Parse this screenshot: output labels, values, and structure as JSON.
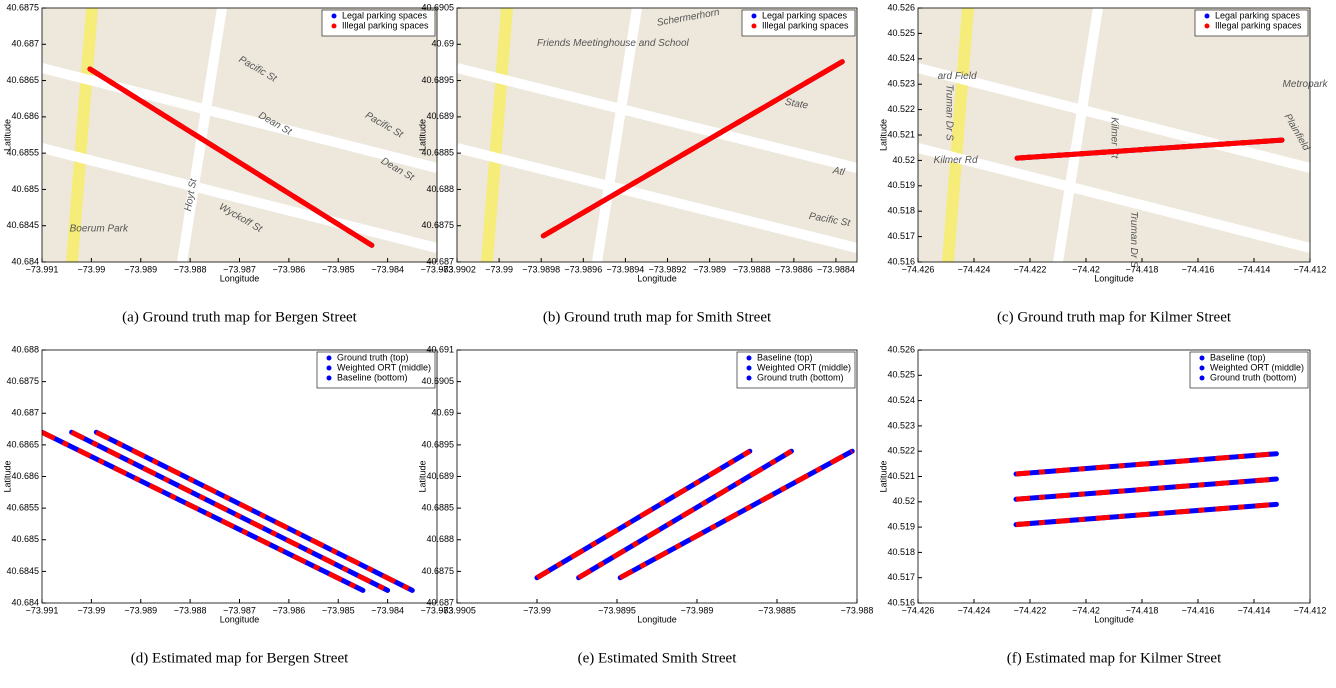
{
  "chart_data": [
    {
      "type": "line",
      "caption": "(a) Ground truth map for Bergen Street",
      "xlabel": "Longitude",
      "ylabel": "Latitude",
      "map_labels": [
        "Pacific St",
        "Dean St",
        "Pacific St",
        "Dean St",
        "Wyckoff St",
        "Hoyt St",
        "Boerum Park"
      ],
      "overlay_color": "#ff0000",
      "series": [
        {
          "name": "Legal parking spaces",
          "color": "#0000ff",
          "x": [
            -73.99003,
            -73.98432
          ],
          "values": [
            40.68666,
            40.68423
          ]
        },
        {
          "name": "Illegal parking spaces",
          "color": "#ff0000",
          "x": [
            -73.99003,
            -73.98432
          ],
          "values": [
            40.68666,
            40.68423
          ]
        }
      ],
      "xlim": [
        -73.991,
        -73.983
      ],
      "ylim": [
        40.684,
        40.6875
      ],
      "xticks": [
        {
          "value": -73.991,
          "label": "−73.991"
        },
        {
          "value": -73.99,
          "label": "−73.99"
        },
        {
          "value": -73.989,
          "label": "−73.989"
        },
        {
          "value": -73.988,
          "label": "−73.988"
        },
        {
          "value": -73.987,
          "label": "−73.987"
        },
        {
          "value": -73.986,
          "label": "−73.986"
        },
        {
          "value": -73.985,
          "label": "−73.985"
        },
        {
          "value": -73.984,
          "label": "−73.984"
        },
        {
          "value": -73.983,
          "label": "−73.983"
        }
      ],
      "yticks": [
        40.684,
        40.6845,
        40.685,
        40.6855,
        40.686,
        40.6865,
        40.687,
        40.6875
      ]
    },
    {
      "type": "line",
      "caption": "(b) Ground truth map for Smith Street",
      "xlabel": "Longitude",
      "ylabel": "Latitude",
      "map_labels": [
        "Schermerhorn",
        "Friends Meetinghouse and School",
        "State",
        "Pacific St",
        "Atl"
      ],
      "overlay_color": "#ff0000",
      "series": [
        {
          "name": "Legal parking spaces",
          "color": "#0000ff",
          "x": [
            -73.98979,
            -73.98837
          ],
          "values": [
            40.68736,
            40.68976
          ]
        },
        {
          "name": "Illegal parking spaces",
          "color": "#ff0000",
          "x": [
            -73.98979,
            -73.98837
          ],
          "values": [
            40.68736,
            40.68976
          ]
        }
      ],
      "xlim": [
        -73.9902,
        -73.9883
      ],
      "ylim": [
        40.687,
        40.6905
      ],
      "xticks": [
        {
          "value": -73.9902,
          "label": "−73.9902"
        },
        {
          "value": -73.99,
          "label": "−73.99"
        },
        {
          "value": -73.9898,
          "label": "−73.9898"
        },
        {
          "value": -73.9896,
          "label": "−73.9896"
        },
        {
          "value": -73.9894,
          "label": "−73.9894"
        },
        {
          "value": -73.9892,
          "label": "−73.9892"
        },
        {
          "value": -73.989,
          "label": "−73.989"
        },
        {
          "value": -73.9888,
          "label": "−73.9888"
        },
        {
          "value": -73.9886,
          "label": "−73.9886"
        },
        {
          "value": -73.9884,
          "label": "−73.9884"
        }
      ],
      "yticks": [
        40.687,
        40.6875,
        40.688,
        40.6885,
        40.689,
        40.6895,
        40.69,
        40.6905
      ]
    },
    {
      "type": "line",
      "caption": "(c) Ground truth map for Kilmer Street",
      "xlabel": "Longitude",
      "ylabel": "Latitude",
      "map_labels": [
        "Truman Dr S",
        "Kilmer Rd",
        "Kilmer Ct",
        "Plainfield",
        "Truman Dr S",
        "ard Field",
        "Metropark"
      ],
      "overlay_color": "#ff0000",
      "series": [
        {
          "name": "Legal parking spaces",
          "color": "#0000ff",
          "x": [
            -74.42246,
            -74.413
          ],
          "values": [
            40.52009,
            40.5208
          ]
        },
        {
          "name": "Illegal parking spaces",
          "color": "#ff0000",
          "x": [
            -74.42246,
            -74.413
          ],
          "values": [
            40.52009,
            40.5208
          ]
        }
      ],
      "xlim": [
        -74.426,
        -74.412
      ],
      "ylim": [
        40.516,
        40.526
      ],
      "xticks": [
        {
          "value": -74.426,
          "label": "−74.426"
        },
        {
          "value": -74.424,
          "label": "−74.424"
        },
        {
          "value": -74.422,
          "label": "−74.422"
        },
        {
          "value": -74.42,
          "label": "−74.42"
        },
        {
          "value": -74.418,
          "label": "−74.418"
        },
        {
          "value": -74.416,
          "label": "−74.416"
        },
        {
          "value": -74.414,
          "label": "−74.414"
        },
        {
          "value": -74.412,
          "label": "−74.412"
        }
      ],
      "yticks": [
        40.516,
        40.517,
        40.518,
        40.519,
        40.52,
        40.521,
        40.522,
        40.523,
        40.524,
        40.525,
        40.526
      ]
    },
    {
      "type": "line",
      "caption": "(d) Estimated map for Bergen Street",
      "xlabel": "Longitude",
      "ylabel": "Latitude",
      "overlay_color": "#ff0000",
      "series": [
        {
          "name": "Ground truth (top)",
          "color": "#0000ff",
          "x": [
            -73.9899,
            -73.9835
          ],
          "values": [
            40.6867,
            40.6842
          ]
        },
        {
          "name": "Weighted ORT (middle)",
          "color": "#0000ff",
          "x": [
            -73.9904,
            -73.984
          ],
          "values": [
            40.6867,
            40.6842
          ]
        },
        {
          "name": "Baseline (bottom)",
          "color": "#0000ff",
          "x": [
            -73.991,
            -73.9845
          ],
          "values": [
            40.6867,
            40.6842
          ]
        }
      ],
      "xlim": [
        -73.991,
        -73.983
      ],
      "ylim": [
        40.684,
        40.688
      ],
      "xticks": [
        {
          "value": -73.991,
          "label": "−73.991"
        },
        {
          "value": -73.99,
          "label": "−73.99"
        },
        {
          "value": -73.989,
          "label": "−73.989"
        },
        {
          "value": -73.988,
          "label": "−73.988"
        },
        {
          "value": -73.987,
          "label": "−73.987"
        },
        {
          "value": -73.986,
          "label": "−73.986"
        },
        {
          "value": -73.985,
          "label": "−73.985"
        },
        {
          "value": -73.984,
          "label": "−73.984"
        },
        {
          "value": -73.983,
          "label": "−73.983"
        }
      ],
      "yticks": [
        40.684,
        40.6845,
        40.685,
        40.6855,
        40.686,
        40.6865,
        40.687,
        40.6875,
        40.688
      ]
    },
    {
      "type": "line",
      "caption": "(e) Estimated Smith Street",
      "xlabel": "Longitude",
      "ylabel": "Latitude",
      "overlay_color": "#ff0000",
      "series": [
        {
          "name": "Baseline (top)",
          "color": "#0000ff",
          "x": [
            -73.99,
            -73.98867
          ],
          "values": [
            40.6874,
            40.6894
          ]
        },
        {
          "name": "Weighted ORT (middle)",
          "color": "#0000ff",
          "x": [
            -73.98974,
            -73.98841
          ],
          "values": [
            40.6874,
            40.6894
          ]
        },
        {
          "name": "Ground truth (bottom)",
          "color": "#0000ff",
          "x": [
            -73.98948,
            -73.98803
          ],
          "values": [
            40.6874,
            40.6894
          ]
        }
      ],
      "xlim": [
        -73.9905,
        -73.988
      ],
      "ylim": [
        40.687,
        40.691
      ],
      "xticks": [
        {
          "value": -73.9905,
          "label": "−73.9905"
        },
        {
          "value": -73.99,
          "label": "−73.99"
        },
        {
          "value": -73.9895,
          "label": "−73.9895"
        },
        {
          "value": -73.989,
          "label": "−73.989"
        },
        {
          "value": -73.9885,
          "label": "−73.9885"
        },
        {
          "value": -73.988,
          "label": "−73.988"
        }
      ],
      "yticks": [
        40.687,
        40.6875,
        40.688,
        40.6885,
        40.689,
        40.6895,
        40.69,
        40.6905,
        40.691
      ]
    },
    {
      "type": "line",
      "caption": "(f) Estimated map for Kilmer Street",
      "xlabel": "Longitude",
      "ylabel": "Latitude",
      "overlay_color": "#ff0000",
      "series": [
        {
          "name": "Baseline (top)",
          "color": "#0000ff",
          "x": [
            -74.4225,
            -74.4132
          ],
          "values": [
            40.5211,
            40.5219
          ]
        },
        {
          "name": "Weighted ORT (middle)",
          "color": "#0000ff",
          "x": [
            -74.4225,
            -74.4132
          ],
          "values": [
            40.5201,
            40.5209
          ]
        },
        {
          "name": "Ground truth (bottom)",
          "color": "#0000ff",
          "x": [
            -74.4225,
            -74.4132
          ],
          "values": [
            40.5191,
            40.5199
          ]
        }
      ],
      "xlim": [
        -74.426,
        -74.412
      ],
      "ylim": [
        40.516,
        40.526
      ],
      "xticks": [
        {
          "value": -74.426,
          "label": "−74.426"
        },
        {
          "value": -74.424,
          "label": "−74.424"
        },
        {
          "value": -74.422,
          "label": "−74.422"
        },
        {
          "value": -74.42,
          "label": "−74.42"
        },
        {
          "value": -74.418,
          "label": "−74.418"
        },
        {
          "value": -74.416,
          "label": "−74.416"
        },
        {
          "value": -74.414,
          "label": "−74.414"
        },
        {
          "value": -74.412,
          "label": "−74.412"
        }
      ],
      "yticks": [
        40.516,
        40.517,
        40.518,
        40.519,
        40.52,
        40.521,
        40.522,
        40.523,
        40.524,
        40.525,
        40.526
      ]
    }
  ]
}
